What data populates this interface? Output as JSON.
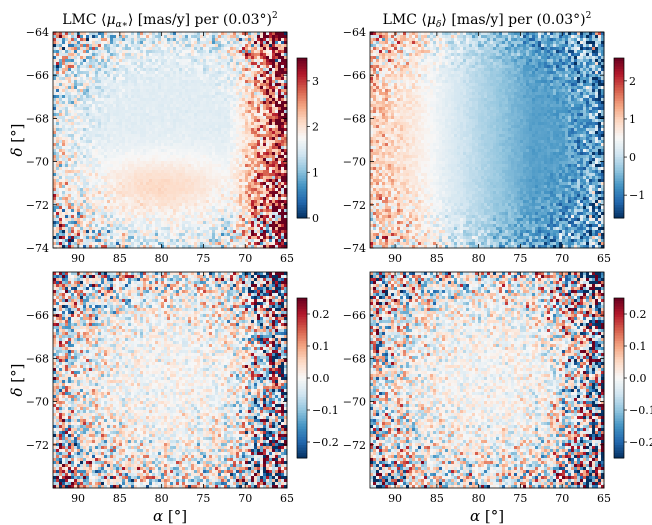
{
  "figure": {
    "colormap": {
      "name": "RdBu_r",
      "low": "#053061",
      "mid": "#f7f7f7",
      "high": "#67001f"
    }
  },
  "chart_data": [
    {
      "type": "heatmap",
      "title": "LMC ⟨μ_α*⟩ [mas/y] per (0.03°)²",
      "title_parts": {
        "pre": "LMC ⟨",
        "sym": "μ",
        "sub": "α∗",
        "post": "⟩ [mas/y] per (0.03°)",
        "sup": "2"
      },
      "ylabel": "δ [°]",
      "xlabel": "",
      "xlim": [
        93,
        65
      ],
      "ylim": [
        -74,
        -64
      ],
      "xticks": [
        "90",
        "85",
        "80",
        "75",
        "70",
        "65"
      ],
      "yticks": [
        "−64",
        "−66",
        "−68",
        "−70",
        "−72",
        "−74"
      ],
      "colorbar": {
        "min": 0,
        "max": 3.5,
        "ticks": [
          "0",
          "1",
          "2",
          "3"
        ]
      },
      "field_description": "≈1.5 in west (α≈75–90) with a warmer band near δ≈−71; rises to >3.5 toward α≈65"
    },
    {
      "type": "heatmap",
      "title": "LMC ⟨μ_δ⟩ [mas/y] per (0.03°)²",
      "title_parts": {
        "pre": "LMC ⟨",
        "sym": "μ",
        "sub": "δ",
        "post": "⟩ [mas/y] per (0.03°)",
        "sup": "2"
      },
      "ylabel": "",
      "xlabel": "",
      "xlim": [
        93,
        65
      ],
      "ylim": [
        -74,
        -64
      ],
      "xticks": [
        "90",
        "85",
        "80",
        "75",
        "70",
        "65"
      ],
      "yticks": [
        "−64",
        "−66",
        "−68",
        "−70",
        "−72",
        "−74"
      ],
      "colorbar": {
        "min": -1.6,
        "max": 2.6,
        "ticks": [
          "−1",
          "0",
          "1",
          "2"
        ]
      },
      "field_description": "positive (~0.8) at α≈90, crossing zero near α≈78, negative (~−0.6) at α≈70"
    },
    {
      "type": "heatmap",
      "title": "",
      "ylabel": "δ [°]",
      "xlabel": "α [°]",
      "xlim": [
        93,
        65
      ],
      "ylim": [
        -74,
        -64
      ],
      "xticks": [
        "90",
        "85",
        "80",
        "75",
        "70",
        "65"
      ],
      "yticks": [
        "−66",
        "−68",
        "−70",
        "−72"
      ],
      "colorbar": {
        "min": -0.25,
        "max": 0.25,
        "ticks": [
          "−0.2",
          "−0.1",
          "0.0",
          "0.1",
          "0.2"
        ]
      },
      "field_description": "residual noise around 0, larger dispersion toward edges and α≈65"
    },
    {
      "type": "heatmap",
      "title": "",
      "ylabel": "",
      "xlabel": "α [°]",
      "xlim": [
        93,
        65
      ],
      "ylim": [
        -74,
        -64
      ],
      "xticks": [
        "90",
        "85",
        "80",
        "75",
        "70",
        "65"
      ],
      "yticks": [
        "−66",
        "−68",
        "−70",
        "−72"
      ],
      "colorbar": {
        "min": -0.25,
        "max": 0.25,
        "ticks": [
          "−0.2",
          "−0.1",
          "0.0",
          "0.1",
          "0.2"
        ]
      },
      "field_description": "residual noise around 0, larger dispersion toward edges and α≈65"
    }
  ]
}
